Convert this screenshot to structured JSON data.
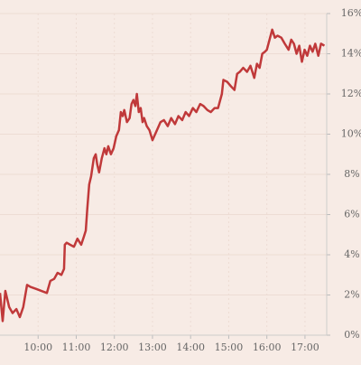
{
  "chart_data": {
    "type": "line",
    "x": [
      9.0,
      9.07,
      9.14,
      9.24,
      9.33,
      9.43,
      9.52,
      9.61,
      9.71,
      9.8,
      9.95,
      10.09,
      10.23,
      10.32,
      10.42,
      10.51,
      10.61,
      10.68,
      10.7,
      10.75,
      10.84,
      10.94,
      11.03,
      11.13,
      11.2,
      11.25,
      11.29,
      11.34,
      11.39,
      11.46,
      11.51,
      11.55,
      11.6,
      11.67,
      11.74,
      11.79,
      11.84,
      11.91,
      11.98,
      12.05,
      12.12,
      12.17,
      12.22,
      12.26,
      12.33,
      12.4,
      12.45,
      12.5,
      12.55,
      12.59,
      12.64,
      12.69,
      12.74,
      12.78,
      12.85,
      12.92,
      13.0,
      13.07,
      13.14,
      13.21,
      13.3,
      13.4,
      13.49,
      13.59,
      13.68,
      13.78,
      13.87,
      13.96,
      14.06,
      14.15,
      14.25,
      14.34,
      14.44,
      14.53,
      14.63,
      14.72,
      14.82,
      14.86,
      14.96,
      15.05,
      15.15,
      15.22,
      15.29,
      15.38,
      15.48,
      15.57,
      15.67,
      15.74,
      15.81,
      15.88,
      15.95,
      16.0,
      16.07,
      16.14,
      16.21,
      16.28,
      16.38,
      16.47,
      16.57,
      16.64,
      16.71,
      16.78,
      16.85,
      16.92,
      16.99,
      17.06,
      17.13,
      17.2,
      17.27,
      17.35,
      17.42,
      17.51
    ],
    "series": [
      {
        "color": "#c0393a",
        "values": [
          2.1,
          0.7,
          2.2,
          1.4,
          1.1,
          1.3,
          0.9,
          1.4,
          2.5,
          2.4,
          2.3,
          2.2,
          2.1,
          2.7,
          2.8,
          3.1,
          3.0,
          3.3,
          4.5,
          4.6,
          4.5,
          4.4,
          4.8,
          4.5,
          4.9,
          5.2,
          6.3,
          7.5,
          7.9,
          8.8,
          9.0,
          8.5,
          8.1,
          8.8,
          9.3,
          9.0,
          9.4,
          9.0,
          9.3,
          9.9,
          10.2,
          11.1,
          10.9,
          11.2,
          10.6,
          10.8,
          11.5,
          11.7,
          11.4,
          12.0,
          11.1,
          11.3,
          10.6,
          10.8,
          10.4,
          10.2,
          9.7,
          10.0,
          10.3,
          10.6,
          10.7,
          10.4,
          10.8,
          10.5,
          10.9,
          10.7,
          11.1,
          10.9,
          11.3,
          11.1,
          11.5,
          11.4,
          11.2,
          11.1,
          11.3,
          11.3,
          12.0,
          12.7,
          12.6,
          12.4,
          12.2,
          13.0,
          13.1,
          13.3,
          13.1,
          13.4,
          12.8,
          13.5,
          13.3,
          14.0,
          14.1,
          14.2,
          14.7,
          15.2,
          14.8,
          14.9,
          14.8,
          14.5,
          14.2,
          14.7,
          14.5,
          14.0,
          14.4,
          13.6,
          14.2,
          13.9,
          14.4,
          14.1,
          14.5,
          13.9,
          14.5,
          14.4
        ]
      }
    ],
    "xlim": [
      9.0,
      17.57
    ],
    "xticks": [
      {
        "value": 10,
        "label": "10:00"
      },
      {
        "value": 11,
        "label": "11:00"
      },
      {
        "value": 12,
        "label": "12:00"
      },
      {
        "value": 13,
        "label": "13:00"
      },
      {
        "value": 14,
        "label": "14:00"
      },
      {
        "value": 15,
        "label": "15:00"
      },
      {
        "value": 16,
        "label": "16:00"
      },
      {
        "value": 17,
        "label": "17:00"
      }
    ],
    "ylim": [
      0,
      16
    ],
    "yticks": [
      {
        "value": 0,
        "label": "0%"
      },
      {
        "value": 2,
        "label": "2%"
      },
      {
        "value": 4,
        "label": "4%"
      },
      {
        "value": 6,
        "label": "6%"
      },
      {
        "value": 8,
        "label": "8%"
      },
      {
        "value": 10,
        "label": "10%"
      },
      {
        "value": 12,
        "label": "12%"
      },
      {
        "value": 14,
        "label": "14%"
      },
      {
        "value": 16,
        "label": "16%"
      }
    ],
    "grid": true
  }
}
